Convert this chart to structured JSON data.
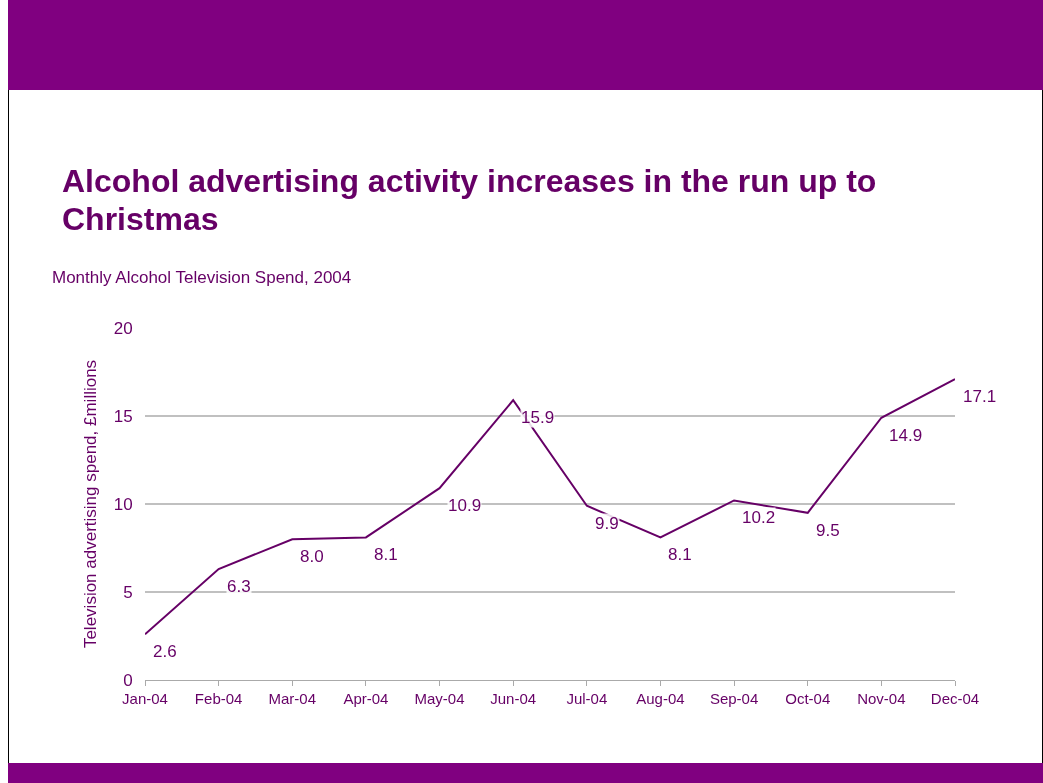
{
  "chart_data": {
    "type": "line",
    "title": "Alcohol advertising activity increases in the run up to Christmas",
    "subtitle": "Monthly Alcohol Television Spend, 2004",
    "ylabel": "Television advertising spend, £millions",
    "categories": [
      "Jan-04",
      "Feb-04",
      "Mar-04",
      "Apr-04",
      "May-04",
      "Jun-04",
      "Jul-04",
      "Aug-04",
      "Sep-04",
      "Oct-04",
      "Nov-04",
      "Dec-04"
    ],
    "series": [
      {
        "color": "#660066",
        "values": [
          2.6,
          6.3,
          8.0,
          8.1,
          10.9,
          15.9,
          9.9,
          8.1,
          10.2,
          9.5,
          14.9,
          17.1
        ],
        "value_labels": [
          "2.6",
          "6.3",
          "8.0",
          "8.1",
          "10.9",
          "15.9",
          "9.9",
          "8.1",
          "10.2",
          "9.5",
          "14.9",
          "17.1"
        ]
      }
    ],
    "ylim": [
      0,
      20
    ],
    "yticks": [
      0,
      5,
      10,
      15,
      20
    ],
    "grid": "y",
    "marker": "none",
    "line_style": "solid"
  }
}
